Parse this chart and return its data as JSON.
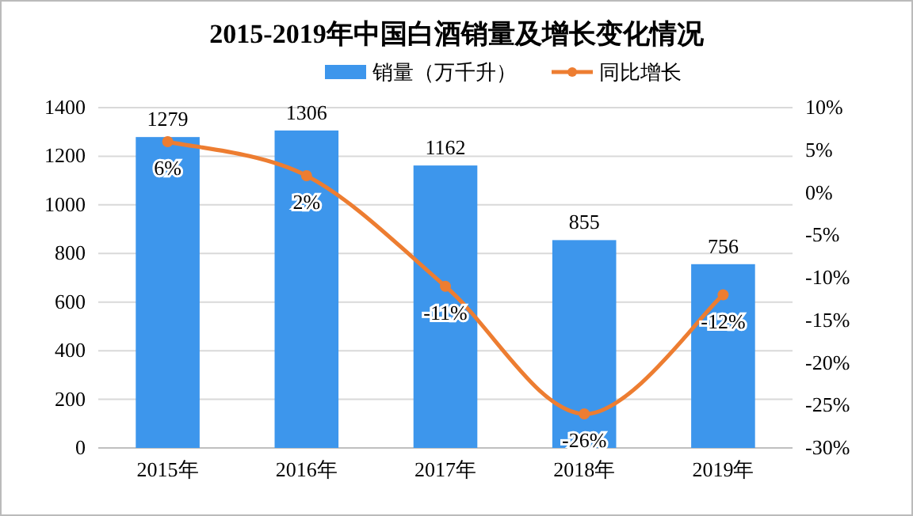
{
  "chart_data": {
    "type": "bar",
    "title": "2015-2019年中国白酒销量及增长变化情况",
    "categories": [
      "2015年",
      "2016年",
      "2017年",
      "2018年",
      "2019年"
    ],
    "series": [
      {
        "name": "销量（万千升）",
        "color": "#3d96ec",
        "values": [
          1279,
          1306,
          1162,
          855,
          756
        ],
        "value_labels": [
          "1279",
          "1306",
          "1162",
          "855",
          "756"
        ]
      },
      {
        "name": "同比增长",
        "type": "line",
        "axis": "y2",
        "color": "#ed7d31",
        "values": [
          6,
          2,
          -11,
          -26,
          -12
        ],
        "value_labels": [
          "6%",
          "2%",
          "-11%",
          "-26%",
          "-12%"
        ],
        "marker": "circle"
      }
    ],
    "ylim": [
      0,
      1400
    ],
    "yticks": [
      0,
      200,
      400,
      600,
      800,
      1000,
      1200,
      1400
    ],
    "y2lim": [
      -30,
      10
    ],
    "y2ticks": [
      {
        "value": -30,
        "label": "-30%"
      },
      {
        "value": -25,
        "label": "-25%"
      },
      {
        "value": -20,
        "label": "-20%"
      },
      {
        "value": -15,
        "label": "-15%"
      },
      {
        "value": -10,
        "label": "-10%"
      },
      {
        "value": -5,
        "label": "-5%"
      },
      {
        "value": 0,
        "label": "0%"
      },
      {
        "value": 5,
        "label": "5%"
      },
      {
        "value": 10,
        "label": "10%"
      }
    ],
    "grid": "y",
    "legend": "top"
  }
}
